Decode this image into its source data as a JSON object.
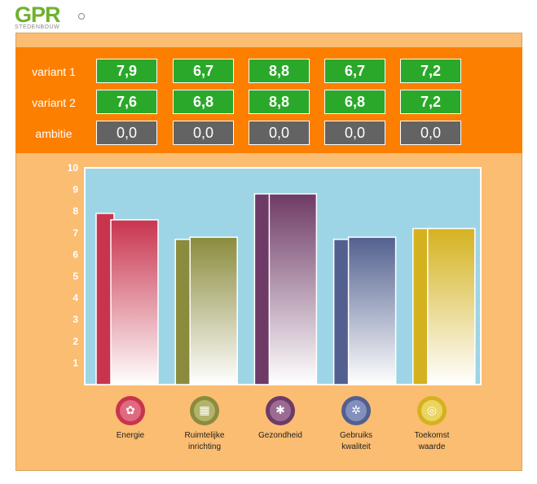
{
  "logo": {
    "mark": "GPR",
    "sub": "STEDENBOUW"
  },
  "rows": [
    {
      "label": "variant 1",
      "values": [
        "7,9",
        "6,7",
        "8,8",
        "6,7",
        "7,2"
      ]
    },
    {
      "label": "variant 2",
      "values": [
        "7,6",
        "6,8",
        "8,8",
        "6,8",
        "7,2"
      ]
    },
    {
      "label": "ambitie",
      "values": [
        "0,0",
        "0,0",
        "0,0",
        "0,0",
        "0,0"
      ]
    }
  ],
  "categories": [
    {
      "label1": "Energie",
      "label2": "",
      "icon": "flower-icon",
      "color": "#c8344e"
    },
    {
      "label1": "Ruimtelijke",
      "label2": "inrichting",
      "icon": "brick-wall-icon",
      "color": "#8b8b3e"
    },
    {
      "label1": "Gezondheid",
      "label2": "",
      "icon": "snowflake-icon",
      "color": "#6e3a66"
    },
    {
      "label1": "Gebruiks",
      "label2": "kwaliteit",
      "icon": "shutter-icon",
      "color": "#53608f"
    },
    {
      "label1": "Toekomst",
      "label2": "waarde",
      "icon": "spiral-icon",
      "color": "#d4b21f"
    }
  ],
  "chart_data": {
    "type": "bar",
    "categories": [
      "Energie",
      "Ruimtelijke inrichting",
      "Gezondheid",
      "Gebruiks kwaliteit",
      "Toekomst waarde"
    ],
    "series": [
      {
        "name": "variant 1",
        "values": [
          7.9,
          6.7,
          8.8,
          6.7,
          7.2
        ]
      },
      {
        "name": "variant 2",
        "values": [
          7.6,
          6.8,
          8.8,
          6.8,
          7.2
        ]
      },
      {
        "name": "ambitie",
        "values": [
          0,
          0,
          0,
          0,
          0
        ]
      }
    ],
    "yticks": [
      "1",
      "2",
      "3",
      "4",
      "5",
      "6",
      "7",
      "8",
      "9",
      "10"
    ],
    "ylim": [
      0,
      10
    ],
    "plot_bg": "#9dd5e6",
    "colors": [
      "#c8344e",
      "#8b8b3e",
      "#6e3a66",
      "#53608f",
      "#d4b21f"
    ]
  }
}
